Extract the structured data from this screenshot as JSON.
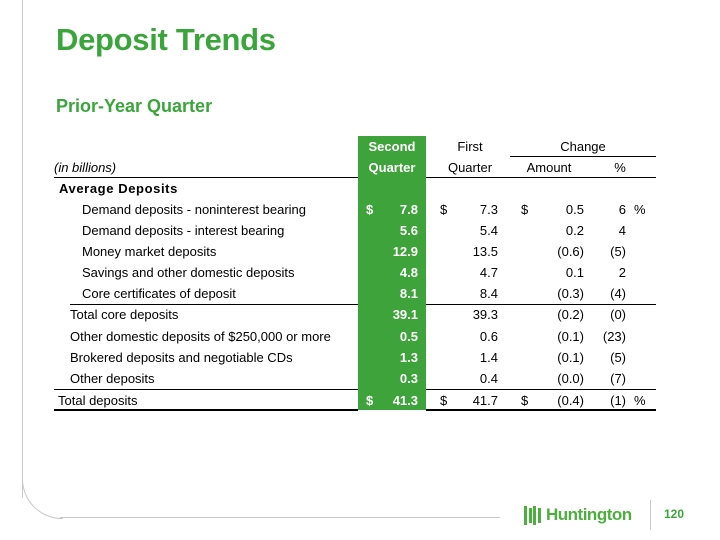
{
  "title": "Deposit Trends",
  "subtitle": "Prior-Year Quarter",
  "table": {
    "unit_label": "(in billions)",
    "col_second": [
      "Second",
      "Quarter"
    ],
    "col_first": [
      "First",
      "Quarter"
    ],
    "col_change": "Change",
    "col_amount": "Amount",
    "col_pct": "%",
    "section_label": "Average Deposits",
    "rows": [
      {
        "label": "Demand deposits - noninterest bearing",
        "second_sym": "$",
        "second": "7.8",
        "first_sym": "$",
        "first": "7.3",
        "amt_sym": "$",
        "amount": "0.5",
        "pct": "6",
        "pct_sym": "%"
      },
      {
        "label": "Demand deposits - interest bearing",
        "second_sym": "",
        "second": "5.6",
        "first_sym": "",
        "first": "5.4",
        "amt_sym": "",
        "amount": "0.2",
        "pct": "4",
        "pct_sym": ""
      },
      {
        "label": "Money market deposits",
        "second_sym": "",
        "second": "12.9",
        "first_sym": "",
        "first": "13.5",
        "amt_sym": "",
        "amount": "(0.6)",
        "pct": "(5)",
        "pct_sym": ""
      },
      {
        "label": "Savings and other domestic deposits",
        "second_sym": "",
        "second": "4.8",
        "first_sym": "",
        "first": "4.7",
        "amt_sym": "",
        "amount": "0.1",
        "pct": "2",
        "pct_sym": ""
      },
      {
        "label": "Core certificates of deposit",
        "second_sym": "",
        "second": "8.1",
        "first_sym": "",
        "first": "8.4",
        "amt_sym": "",
        "amount": "(0.3)",
        "pct": "(4)",
        "pct_sym": ""
      },
      {
        "label": "Total core deposits",
        "second_sym": "",
        "second": "39.1",
        "first_sym": "",
        "first": "39.3",
        "amt_sym": "",
        "amount": "(0.2)",
        "pct": "(0)",
        "pct_sym": ""
      },
      {
        "label": "Other domestic deposits of $250,000 or more",
        "second_sym": "",
        "second": "0.5",
        "first_sym": "",
        "first": "0.6",
        "amt_sym": "",
        "amount": "(0.1)",
        "pct": "(23)",
        "pct_sym": ""
      },
      {
        "label": "Brokered deposits and negotiable CDs",
        "second_sym": "",
        "second": "1.3",
        "first_sym": "",
        "first": "1.4",
        "amt_sym": "",
        "amount": "(0.1)",
        "pct": "(5)",
        "pct_sym": ""
      },
      {
        "label": "Other deposits",
        "second_sym": "",
        "second": "0.3",
        "first_sym": "",
        "first": "0.4",
        "amt_sym": "",
        "amount": "(0.0)",
        "pct": "(7)",
        "pct_sym": ""
      },
      {
        "label": "Total deposits",
        "second_sym": "$",
        "second": "41.3",
        "first_sym": "$",
        "first": "41.7",
        "amt_sym": "$",
        "amount": "(0.4)",
        "pct": "(1)",
        "pct_sym": "%"
      }
    ]
  },
  "footer": {
    "logo_text": "Huntington",
    "page_number": "120"
  },
  "colors": {
    "brand_green": "#3aa53a",
    "column_green": "#3fa33c"
  }
}
